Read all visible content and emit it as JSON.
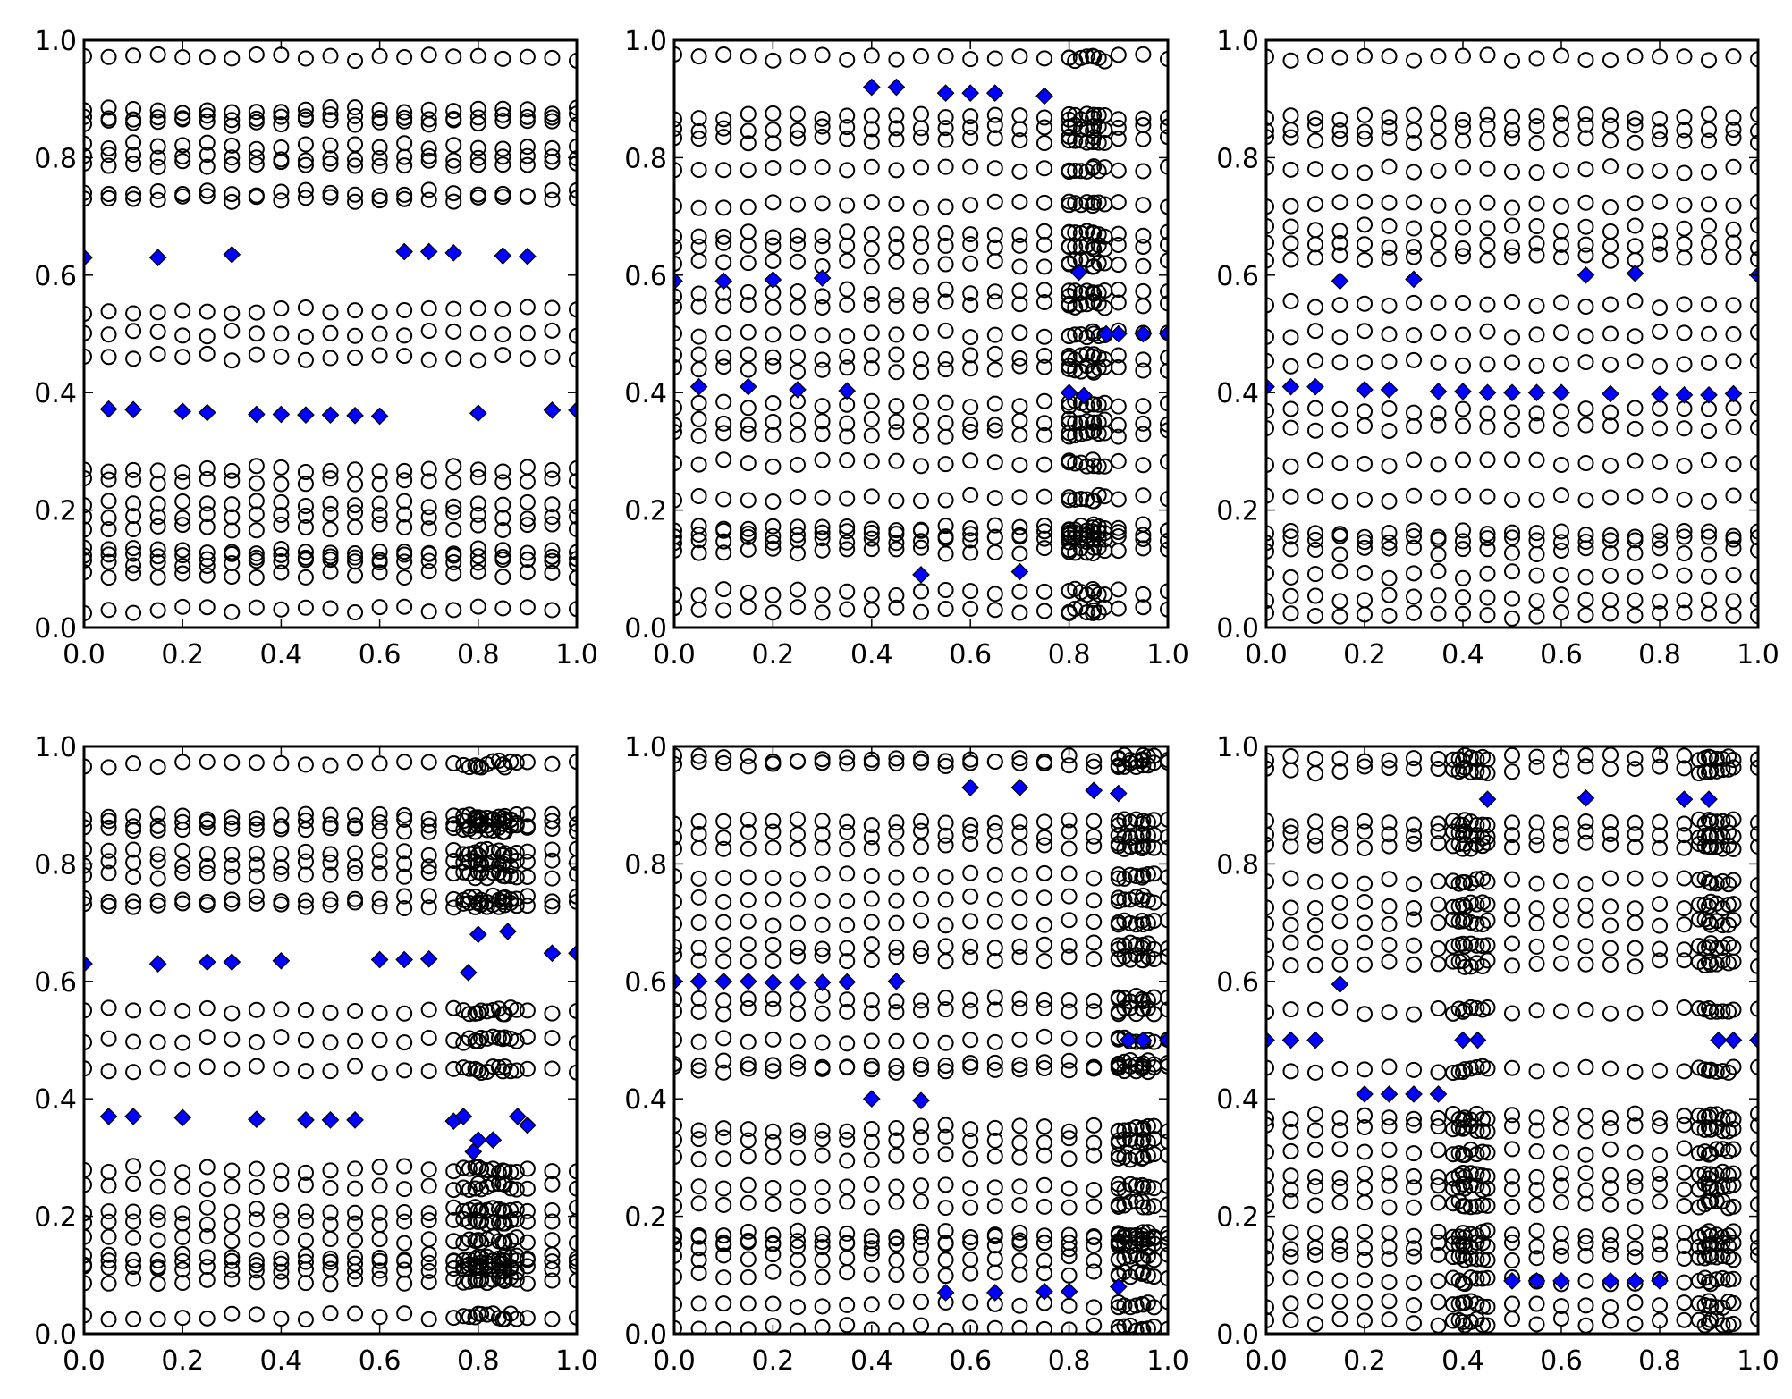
{
  "chart_data": [
    {
      "type": "scatter",
      "title": "",
      "xlabel": "",
      "ylabel": "",
      "xlim": [
        0,
        1
      ],
      "ylim": [
        0,
        1
      ],
      "xticks": [
        "0.0",
        "0.2",
        "0.4",
        "0.6",
        "0.8",
        "1.0"
      ],
      "yticks": [
        "0.0",
        "0.2",
        "0.4",
        "0.6",
        "0.8",
        "1.0"
      ],
      "circle_x_grid": {
        "start": 0,
        "stop": 1,
        "step": 0.05
      },
      "circle_y_levels": [
        0.97,
        0.88,
        0.87,
        0.86,
        0.82,
        0.8,
        0.79,
        0.74,
        0.73,
        0.54,
        0.5,
        0.46,
        0.27,
        0.25,
        0.21,
        0.19,
        0.17,
        0.13,
        0.12,
        0.11,
        0.09,
        0.03
      ],
      "dense_x_ranges": [],
      "diamonds": [
        [
          0,
          0.63
        ],
        [
          0.15,
          0.63
        ],
        [
          0.3,
          0.635
        ],
        [
          0.65,
          0.64
        ],
        [
          0.7,
          0.64
        ],
        [
          0.75,
          0.638
        ],
        [
          0.85,
          0.633
        ],
        [
          0.9,
          0.632
        ],
        [
          0.05,
          0.372
        ],
        [
          0.1,
          0.371
        ],
        [
          0.2,
          0.368
        ],
        [
          0.25,
          0.366
        ],
        [
          0.35,
          0.363
        ],
        [
          0.4,
          0.363
        ],
        [
          0.45,
          0.362
        ],
        [
          0.5,
          0.362
        ],
        [
          0.55,
          0.361
        ],
        [
          0.6,
          0.36
        ],
        [
          0.8,
          0.365
        ],
        [
          0.95,
          0.37
        ],
        [
          1.0,
          0.37
        ]
      ]
    },
    {
      "type": "scatter",
      "title": "",
      "xlabel": "",
      "ylabel": "",
      "xlim": [
        0,
        1
      ],
      "ylim": [
        0,
        1
      ],
      "xticks": [
        "0.0",
        "0.2",
        "0.4",
        "0.6",
        "0.8",
        "1.0"
      ],
      "yticks": [
        "0.0",
        "0.2",
        "0.4",
        "0.6",
        "0.8",
        "1.0"
      ],
      "circle_x_grid": {
        "start": 0,
        "stop": 1,
        "step": 0.05
      },
      "circle_y_levels": [
        0.97,
        0.87,
        0.85,
        0.83,
        0.78,
        0.72,
        0.67,
        0.65,
        0.62,
        0.57,
        0.55,
        0.5,
        0.46,
        0.44,
        0.38,
        0.35,
        0.33,
        0.28,
        0.22,
        0.17,
        0.16,
        0.15,
        0.13,
        0.06,
        0.03
      ],
      "dense_x_ranges": [
        [
          0.8,
          0.88
        ]
      ],
      "diamonds": [
        [
          0.4,
          0.92
        ],
        [
          0.45,
          0.92
        ],
        [
          0.55,
          0.91
        ],
        [
          0.6,
          0.91
        ],
        [
          0.65,
          0.91
        ],
        [
          0.75,
          0.905
        ],
        [
          0,
          0.59
        ],
        [
          0.1,
          0.59
        ],
        [
          0.2,
          0.592
        ],
        [
          0.3,
          0.595
        ],
        [
          0.05,
          0.41
        ],
        [
          0.15,
          0.41
        ],
        [
          0.25,
          0.405
        ],
        [
          0.35,
          0.403
        ],
        [
          0.5,
          0.09
        ],
        [
          0.7,
          0.095
        ],
        [
          0.82,
          0.605
        ],
        [
          0.8,
          0.4
        ],
        [
          0.83,
          0.395
        ],
        [
          0.875,
          0.5
        ],
        [
          0.9,
          0.5
        ],
        [
          0.95,
          0.5
        ],
        [
          1.0,
          0.5
        ]
      ]
    },
    {
      "type": "scatter",
      "title": "",
      "xlabel": "",
      "ylabel": "",
      "xlim": [
        0,
        1
      ],
      "ylim": [
        0,
        1
      ],
      "xticks": [
        "0.0",
        "0.2",
        "0.4",
        "0.6",
        "0.8",
        "1.0"
      ],
      "yticks": [
        "0.0",
        "0.2",
        "0.4",
        "0.6",
        "0.8",
        "1.0"
      ],
      "circle_x_grid": {
        "start": 0,
        "stop": 1,
        "step": 0.05
      },
      "circle_y_levels": [
        0.97,
        0.87,
        0.85,
        0.83,
        0.78,
        0.72,
        0.68,
        0.65,
        0.63,
        0.55,
        0.5,
        0.45,
        0.37,
        0.34,
        0.28,
        0.22,
        0.16,
        0.15,
        0.13,
        0.09,
        0.05,
        0.02
      ],
      "dense_x_ranges": [],
      "diamonds": [
        [
          0.15,
          0.59
        ],
        [
          0.3,
          0.593
        ],
        [
          0.65,
          0.6
        ],
        [
          0.75,
          0.603
        ],
        [
          1.0,
          0.6
        ],
        [
          0,
          0.41
        ],
        [
          0.05,
          0.41
        ],
        [
          0.1,
          0.41
        ],
        [
          0.2,
          0.405
        ],
        [
          0.25,
          0.405
        ],
        [
          0.35,
          0.402
        ],
        [
          0.4,
          0.402
        ],
        [
          0.45,
          0.4
        ],
        [
          0.5,
          0.4
        ],
        [
          0.55,
          0.4
        ],
        [
          0.6,
          0.4
        ],
        [
          0.7,
          0.398
        ],
        [
          0.8,
          0.397
        ],
        [
          0.85,
          0.396
        ],
        [
          0.9,
          0.396
        ],
        [
          0.95,
          0.398
        ]
      ]
    },
    {
      "type": "scatter",
      "title": "",
      "xlabel": "",
      "ylabel": "",
      "xlim": [
        0,
        1
      ],
      "ylim": [
        0,
        1
      ],
      "xticks": [
        "0.0",
        "0.2",
        "0.4",
        "0.6",
        "0.8",
        "1.0"
      ],
      "yticks": [
        "0.0",
        "0.2",
        "0.4",
        "0.6",
        "0.8",
        "1.0"
      ],
      "circle_x_grid": {
        "start": 0,
        "stop": 1,
        "step": 0.05
      },
      "circle_y_levels": [
        0.97,
        0.88,
        0.87,
        0.86,
        0.82,
        0.8,
        0.78,
        0.74,
        0.73,
        0.55,
        0.5,
        0.45,
        0.28,
        0.25,
        0.21,
        0.19,
        0.16,
        0.13,
        0.12,
        0.11,
        0.09,
        0.03
      ],
      "dense_x_ranges": [
        [
          0.77,
          0.88
        ]
      ],
      "diamonds": [
        [
          0,
          0.63
        ],
        [
          0.15,
          0.63
        ],
        [
          0.25,
          0.633
        ],
        [
          0.3,
          0.633
        ],
        [
          0.4,
          0.635
        ],
        [
          0.6,
          0.637
        ],
        [
          0.65,
          0.637
        ],
        [
          0.7,
          0.638
        ],
        [
          0.95,
          0.648
        ],
        [
          1.0,
          0.648
        ],
        [
          0.78,
          0.615
        ],
        [
          0.8,
          0.68
        ],
        [
          0.86,
          0.685
        ],
        [
          0.05,
          0.37
        ],
        [
          0.1,
          0.37
        ],
        [
          0.2,
          0.368
        ],
        [
          0.35,
          0.365
        ],
        [
          0.45,
          0.364
        ],
        [
          0.5,
          0.364
        ],
        [
          0.55,
          0.364
        ],
        [
          0.75,
          0.362
        ],
        [
          0.77,
          0.37
        ],
        [
          0.88,
          0.37
        ],
        [
          0.9,
          0.355
        ],
        [
          0.8,
          0.33
        ],
        [
          0.83,
          0.33
        ],
        [
          0.79,
          0.31
        ]
      ]
    },
    {
      "type": "scatter",
      "title": "",
      "xlabel": "",
      "ylabel": "",
      "xlim": [
        0,
        1
      ],
      "ylim": [
        0,
        1
      ],
      "xticks": [
        "0.0",
        "0.2",
        "0.4",
        "0.6",
        "0.8",
        "1.0"
      ],
      "yticks": [
        "0.0",
        "0.2",
        "0.4",
        "0.6",
        "0.8",
        "1.0"
      ],
      "circle_x_grid": {
        "start": 0,
        "stop": 1,
        "step": 0.05
      },
      "circle_y_levels": [
        0.98,
        0.97,
        0.87,
        0.85,
        0.83,
        0.78,
        0.74,
        0.7,
        0.66,
        0.64,
        0.57,
        0.55,
        0.5,
        0.46,
        0.45,
        0.35,
        0.33,
        0.3,
        0.25,
        0.22,
        0.17,
        0.16,
        0.15,
        0.13,
        0.1,
        0.05,
        0.01
      ],
      "dense_x_ranges": [
        [
          0.9,
          0.98
        ]
      ],
      "diamonds": [
        [
          0,
          0.6
        ],
        [
          0.05,
          0.6
        ],
        [
          0.1,
          0.6
        ],
        [
          0.15,
          0.6
        ],
        [
          0.2,
          0.598
        ],
        [
          0.25,
          0.598
        ],
        [
          0.3,
          0.598
        ],
        [
          0.35,
          0.599
        ],
        [
          0.45,
          0.6
        ],
        [
          0.6,
          0.93
        ],
        [
          0.7,
          0.93
        ],
        [
          0.85,
          0.925
        ],
        [
          0.9,
          0.92
        ],
        [
          0.4,
          0.4
        ],
        [
          0.5,
          0.397
        ],
        [
          0.55,
          0.07
        ],
        [
          0.65,
          0.07
        ],
        [
          0.75,
          0.072
        ],
        [
          0.8,
          0.072
        ],
        [
          0.9,
          0.08
        ],
        [
          0.92,
          0.5
        ],
        [
          0.95,
          0.5
        ],
        [
          1.0,
          0.5
        ]
      ]
    },
    {
      "type": "scatter",
      "title": "",
      "xlabel": "",
      "ylabel": "",
      "xlim": [
        0,
        1
      ],
      "ylim": [
        0,
        1
      ],
      "xticks": [
        "0.0",
        "0.2",
        "0.4",
        "0.6",
        "0.8",
        "1.0"
      ],
      "yticks": [
        "0.0",
        "0.2",
        "0.4",
        "0.6",
        "0.8",
        "1.0"
      ],
      "circle_x_grid": {
        "start": 0,
        "stop": 1,
        "step": 0.05
      },
      "circle_y_levels": [
        0.98,
        0.96,
        0.87,
        0.85,
        0.83,
        0.77,
        0.73,
        0.7,
        0.66,
        0.63,
        0.55,
        0.45,
        0.37,
        0.35,
        0.31,
        0.27,
        0.25,
        0.22,
        0.17,
        0.15,
        0.13,
        0.09,
        0.05,
        0.02
      ],
      "dense_x_ranges": [
        [
          0.38,
          0.45
        ],
        [
          0.88,
          0.95
        ]
      ],
      "diamonds": [
        [
          0,
          0.5
        ],
        [
          0.05,
          0.5
        ],
        [
          0.1,
          0.5
        ],
        [
          0.15,
          0.595
        ],
        [
          0.2,
          0.408
        ],
        [
          0.25,
          0.408
        ],
        [
          0.3,
          0.408
        ],
        [
          0.35,
          0.408
        ],
        [
          0.4,
          0.5
        ],
        [
          0.43,
          0.5
        ],
        [
          0.45,
          0.91
        ],
        [
          0.65,
          0.912
        ],
        [
          0.85,
          0.91
        ],
        [
          0.9,
          0.91
        ],
        [
          0.5,
          0.09
        ],
        [
          0.55,
          0.09
        ],
        [
          0.6,
          0.09
        ],
        [
          0.7,
          0.09
        ],
        [
          0.75,
          0.09
        ],
        [
          0.8,
          0.09
        ],
        [
          0.92,
          0.5
        ],
        [
          0.95,
          0.5
        ],
        [
          1.0,
          0.5
        ]
      ]
    }
  ],
  "colors": {
    "diamond_fill": "#0000ff",
    "marker_edge": "#000000",
    "axes": "#000000"
  }
}
